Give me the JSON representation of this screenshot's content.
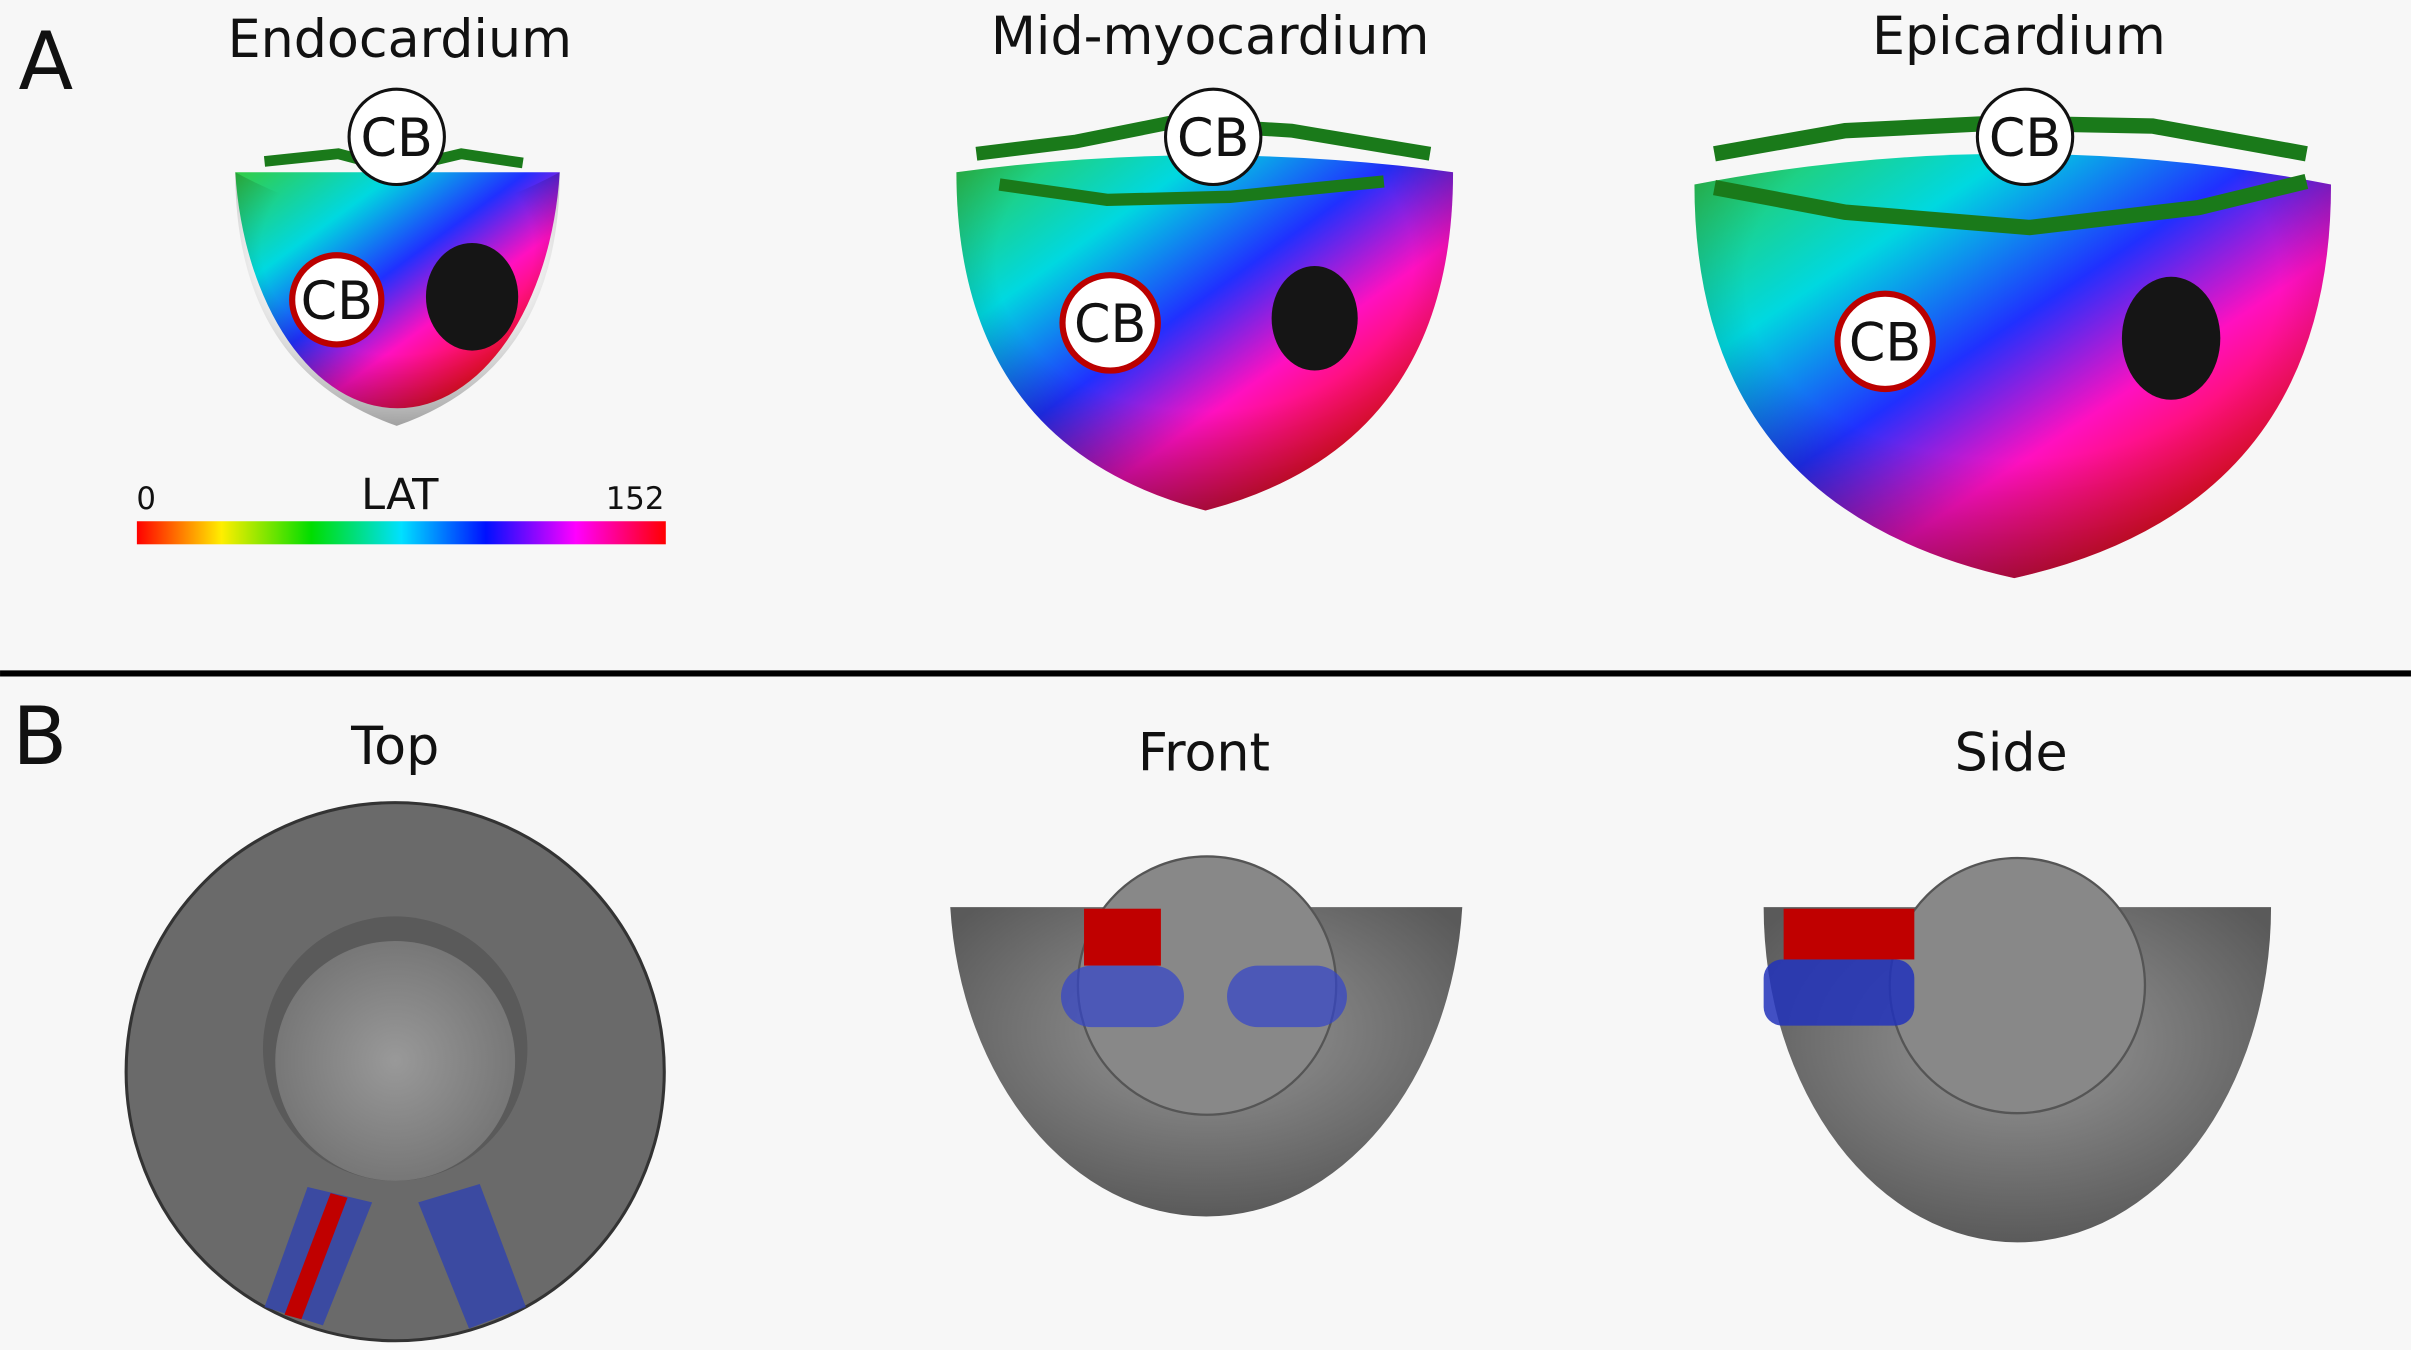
{
  "panel_a": {
    "label": "A",
    "views": [
      {
        "title": "Endocardium",
        "markers": [
          "CB",
          "CB"
        ]
      },
      {
        "title": "Mid-myocardium",
        "markers": [
          "CB",
          "CB"
        ]
      },
      {
        "title": "Epicardium",
        "markers": [
          "CB",
          "CB"
        ]
      }
    ],
    "colorbar": {
      "min": 0,
      "label": "LAT",
      "max": 152
    }
  },
  "panel_b": {
    "label": "B",
    "views": [
      {
        "title": "Top"
      },
      {
        "title": "Front"
      },
      {
        "title": "Side"
      }
    ]
  }
}
